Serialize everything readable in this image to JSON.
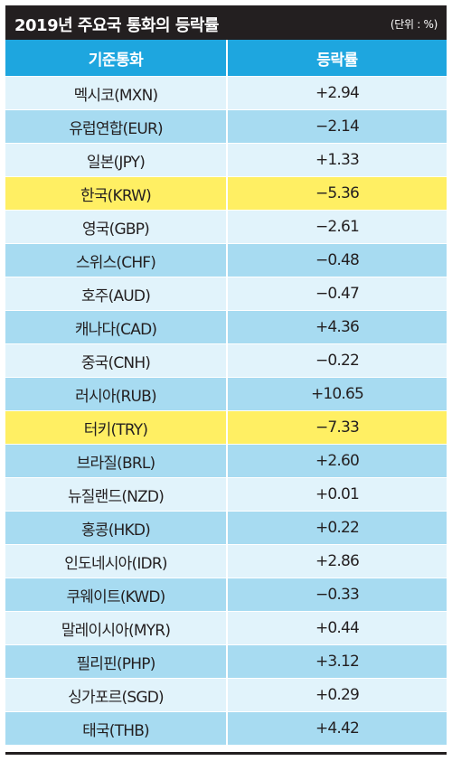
{
  "header": {
    "title": "2019년 주요국 통화의 등락률",
    "unit": "(단위 : %)"
  },
  "table": {
    "columns": [
      "기준통화",
      "등락률"
    ],
    "rows": [
      {
        "currency": "멕시코(MXN)",
        "change": "+2.94"
      },
      {
        "currency": "유럽연합(EUR)",
        "change": "−2.14"
      },
      {
        "currency": "일본(JPY)",
        "change": "+1.33"
      },
      {
        "currency": "한국(KRW)",
        "change": "−5.36"
      },
      {
        "currency": "영국(GBP)",
        "change": "−2.61"
      },
      {
        "currency": "스위스(CHF)",
        "change": "−0.48"
      },
      {
        "currency": "호주(AUD)",
        "change": "−0.47"
      },
      {
        "currency": "캐나다(CAD)",
        "change": "+4.36"
      },
      {
        "currency": "중국(CNH)",
        "change": "−0.22"
      },
      {
        "currency": "러시아(RUB)",
        "change": "+10.65"
      },
      {
        "currency": "터키(TRY)",
        "change": "−7.33"
      },
      {
        "currency": "브라질(BRL)",
        "change": "+2.60"
      },
      {
        "currency": "뉴질랜드(NZD)",
        "change": "+0.01"
      },
      {
        "currency": "홍콩(HKD)",
        "change": "+0.22"
      },
      {
        "currency": "인도네시아(IDR)",
        "change": "+2.86"
      },
      {
        "currency": "쿠웨이트(KWD)",
        "change": "−0.33"
      },
      {
        "currency": "말레이시아(MYR)",
        "change": "+0.44"
      },
      {
        "currency": "필리핀(PHP)",
        "change": "+3.12"
      },
      {
        "currency": "싱가포르(SGD)",
        "change": "+0.29"
      },
      {
        "currency": "태국(THB)",
        "change": "+4.42"
      }
    ]
  },
  "colors": {
    "title_bg": "#231f20",
    "header_bg": "#1ea6df",
    "row_light": "#e1f3fb",
    "row_dark": "#a7dbf1",
    "highlight": "#ffef63"
  },
  "highlighted_rows": [
    "한국(KRW)",
    "터키(TRY)"
  ]
}
